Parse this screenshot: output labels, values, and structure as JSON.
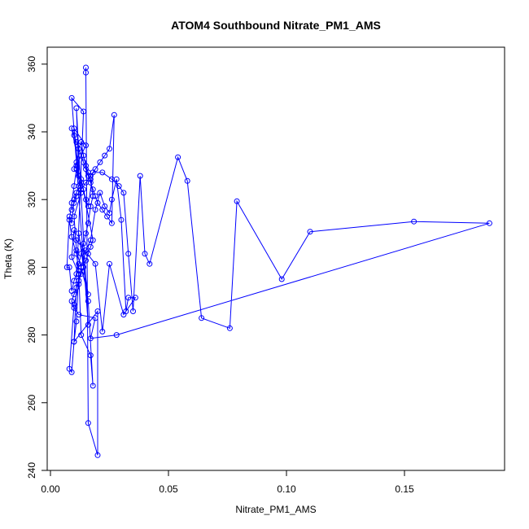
{
  "chart_data": {
    "type": "line",
    "title": "ATOM4 Southbound Nitrate_PM1_AMS",
    "xlabel": "Nitrate_PM1_AMS",
    "ylabel": "Theta (K)",
    "xlim": [
      0.0,
      0.19
    ],
    "ylim": [
      240,
      365
    ],
    "xticks": [
      "0.00",
      "0.05",
      "0.10",
      "0.15"
    ],
    "yticks": [
      "240",
      "260",
      "280",
      "300",
      "320",
      "340",
      "360"
    ],
    "grid": false,
    "legend": "none",
    "line_color": "#0000ff",
    "marker": "open-circle",
    "series": [
      {
        "x": [
          0.015,
          0.015,
          0.016,
          0.02,
          0.02,
          0.01,
          0.014,
          0.009,
          0.016,
          0.011,
          0.012,
          0.01,
          0.015,
          0.011,
          0.013,
          0.01,
          0.011,
          0.016,
          0.012,
          0.016,
          0.018,
          0.017,
          0.013,
          0.012,
          0.009,
          0.01,
          0.011,
          0.019,
          0.022,
          0.025,
          0.031,
          0.036,
          0.033,
          0.032,
          0.03,
          0.028,
          0.026,
          0.025,
          0.023,
          0.021,
          0.019,
          0.017,
          0.015,
          0.013,
          0.012,
          0.01,
          0.008,
          0.009,
          0.01,
          0.011,
          0.012,
          0.011,
          0.009,
          0.008,
          0.009,
          0.01,
          0.011,
          0.012,
          0.013,
          0.014,
          0.015,
          0.016,
          0.017,
          0.018,
          0.017,
          0.016,
          0.015,
          0.014,
          0.013,
          0.012,
          0.011,
          0.01,
          0.009,
          0.008,
          0.007,
          0.008,
          0.009,
          0.01,
          0.011,
          0.012,
          0.013,
          0.01,
          0.011,
          0.012,
          0.013,
          0.014,
          0.015,
          0.016,
          0.018,
          0.022,
          0.026,
          0.029,
          0.031,
          0.033,
          0.035,
          0.038,
          0.04,
          0.042,
          0.054,
          0.058,
          0.064,
          0.076,
          0.079,
          0.098,
          0.11,
          0.154,
          0.186,
          0.028,
          0.017,
          0.019,
          0.012,
          0.01,
          0.009,
          0.01,
          0.011,
          0.012,
          0.013,
          0.014,
          0.015,
          0.016,
          0.017,
          0.018,
          0.009,
          0.01,
          0.011,
          0.012,
          0.013,
          0.014,
          0.015,
          0.016,
          0.017,
          0.018,
          0.019,
          0.02,
          0.022,
          0.024,
          0.026,
          0.027,
          0.025,
          0.023,
          0.021,
          0.019,
          0.017,
          0.015,
          0.013,
          0.011,
          0.01,
          0.009
        ],
        "y": [
          359,
          357.5,
          254,
          244.5,
          287,
          278,
          346,
          350,
          283,
          347,
          327,
          341,
          336,
          330,
          322,
          315,
          305,
          292,
          310,
          290,
          265,
          274,
          280,
          298,
          303,
          311,
          308,
          301,
          281,
          301,
          286,
          291,
          291,
          287,
          314,
          326,
          320,
          316,
          318,
          322,
          317,
          308,
          305,
          300,
          295,
          289,
          270,
          269,
          278,
          284,
          299,
          304,
          309,
          314,
          319,
          324,
          329,
          335,
          337,
          333,
          330,
          328,
          326,
          321,
          318,
          313,
          310,
          307,
          304,
          301,
          298,
          296,
          293,
          300,
          300,
          315,
          313,
          320,
          322,
          324,
          326,
          329,
          331,
          327,
          325,
          323,
          320,
          318,
          328,
          328,
          326,
          324,
          322,
          304,
          287,
          327,
          304,
          301,
          332.5,
          325.5,
          285,
          282,
          319.5,
          296.5,
          310.5,
          313.5,
          313,
          280,
          279,
          285,
          286,
          288,
          290,
          292,
          294,
          296,
          298,
          300,
          302,
          304,
          306,
          308,
          341,
          339,
          337,
          335,
          333,
          331,
          329,
          327,
          325,
          323,
          321,
          319,
          317,
          315,
          313,
          345,
          335,
          333,
          331,
          329,
          327,
          325,
          323,
          321,
          319,
          317
        ]
      }
    ]
  }
}
